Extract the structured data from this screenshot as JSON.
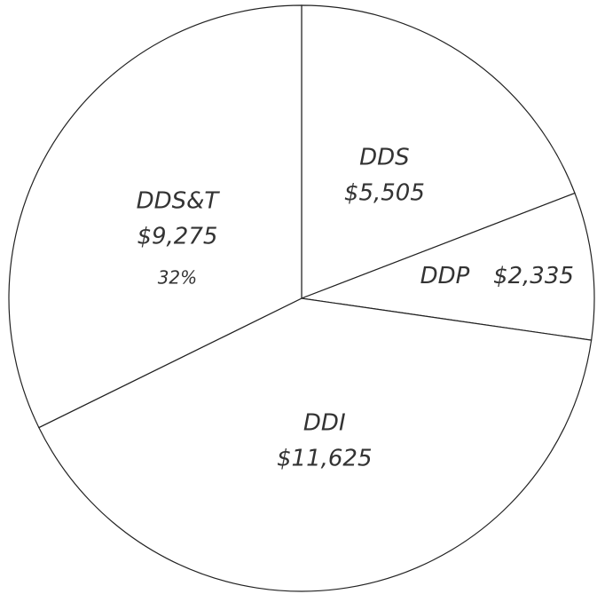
{
  "chart_data": {
    "type": "pie",
    "categories": [
      "DDS",
      "DDP",
      "DDI",
      "DDS&T"
    ],
    "values": [
      5505,
      2335,
      11625,
      9275
    ],
    "value_labels": [
      "$5,505",
      "$2,335",
      "$11,625",
      "$9,275"
    ],
    "annotations": [
      {
        "text": "32%",
        "category": 3
      }
    ],
    "color": "#ffffff"
  }
}
